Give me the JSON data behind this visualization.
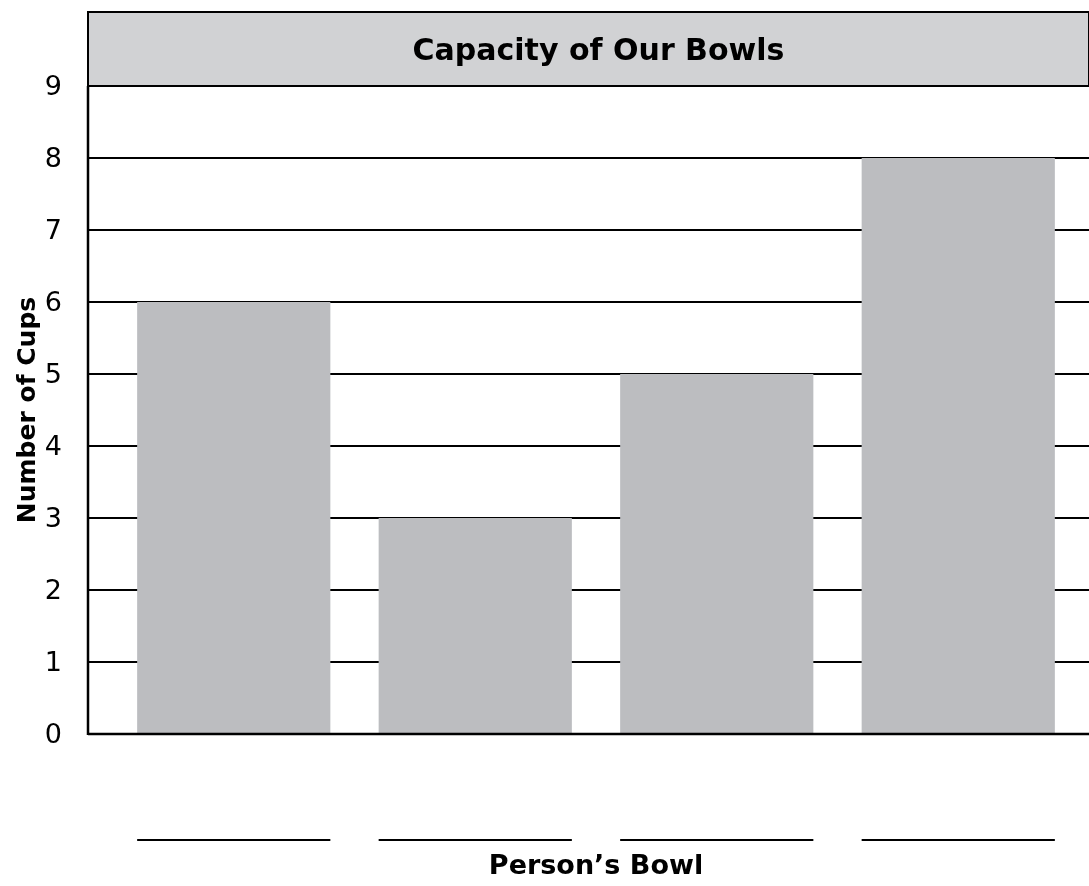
{
  "chart_data": {
    "type": "bar",
    "title": "Capacity of Our Bowls",
    "xlabel": "Person’s Bowl",
    "ylabel": "Number of Cups",
    "categories": [
      null,
      null,
      null,
      null
    ],
    "values": [
      6,
      3,
      5,
      8
    ],
    "color": "#bcbdc0",
    "ylim": [
      0,
      9
    ],
    "yticks": [
      0,
      1,
      2,
      3,
      4,
      5,
      6,
      7,
      8,
      9
    ],
    "grid": "y"
  }
}
